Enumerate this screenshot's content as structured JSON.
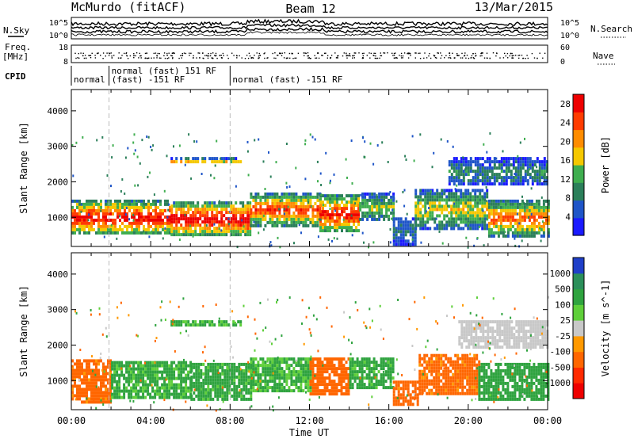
{
  "header": {
    "station": "McMurdo (fitACF)",
    "beam": "Beam 12",
    "date": "13/Mar/2015"
  },
  "noise_panel": {
    "left_label": "N.Sky",
    "right_label": "N.Search",
    "left_ticks": [
      "10^5",
      "10^0"
    ],
    "right_ticks": [
      "10^5",
      "10^0"
    ]
  },
  "freq_panel": {
    "left_label_1": "Freq.",
    "left_label_2": "[MHz]",
    "right_label": "Nave",
    "left_ticks": [
      "18",
      "8"
    ],
    "right_ticks": [
      "60",
      "0"
    ]
  },
  "cpid_panel": {
    "label": "CPID",
    "segments": [
      {
        "start": 0.0,
        "end": 1.9,
        "lines": [
          "normal"
        ]
      },
      {
        "start": 1.9,
        "end": 8.0,
        "lines": [
          "normal (fast) 151 RF",
          "(fast) -151 RF"
        ]
      },
      {
        "start": 8.0,
        "end": 24.0,
        "lines": [
          "normal (fast) -151 RF"
        ]
      }
    ]
  },
  "x_axis": {
    "label": "Time UT",
    "ticks": [
      "00:00",
      "04:00",
      "08:00",
      "12:00",
      "16:00",
      "20:00",
      "00:00"
    ],
    "range_hours": [
      0,
      24
    ]
  },
  "chart_data": [
    {
      "type": "heatmap",
      "parameter": "power",
      "ylabel": "Slant Range [km]",
      "yticks": [
        1000,
        2000,
        3000,
        4000
      ],
      "ylim": [
        180,
        4600
      ],
      "xlim_hours": [
        0,
        24
      ],
      "colorbar_label": "Power [dB]",
      "colorbar_ticks": [
        4,
        8,
        12,
        16,
        20,
        24,
        28
      ],
      "colorbar_range": [
        0,
        30
      ],
      "colors": [
        "#1a1aff",
        "#1f55c8",
        "#2b7f5a",
        "#3fae4f",
        "#f5c800",
        "#ff8c00",
        "#ff3c00",
        "#ee0000"
      ],
      "bands": [
        {
          "t0": 0.0,
          "t1": 5.0,
          "r0": 550,
          "r1": 1500,
          "value": 27
        },
        {
          "t0": 5.0,
          "t1": 9.0,
          "r0": 520,
          "r1": 1450,
          "value": 28
        },
        {
          "t0": 9.0,
          "t1": 12.5,
          "r0": 800,
          "r1": 1700,
          "value": 24
        },
        {
          "t0": 12.5,
          "t1": 14.5,
          "r0": 600,
          "r1": 1650,
          "value": 26
        },
        {
          "t0": 14.5,
          "t1": 16.2,
          "r0": 900,
          "r1": 1700,
          "value": 14
        },
        {
          "t0": 16.2,
          "t1": 17.3,
          "r0": 250,
          "r1": 1000,
          "value": 8
        },
        {
          "t0": 17.3,
          "t1": 21.0,
          "r0": 700,
          "r1": 1800,
          "value": 16
        },
        {
          "t0": 21.0,
          "t1": 24.0,
          "r0": 500,
          "r1": 1500,
          "value": 22
        },
        {
          "t0": 5.0,
          "t1": 8.5,
          "r0": 2550,
          "r1": 2700,
          "value": 18
        },
        {
          "t0": 19.0,
          "t1": 24.0,
          "r0": 1900,
          "r1": 2700,
          "value": 9
        }
      ]
    },
    {
      "type": "heatmap",
      "parameter": "velocity",
      "ylabel": "Slant Range [km]",
      "yticks": [
        1000,
        2000,
        3000,
        4000
      ],
      "ylim": [
        180,
        4600
      ],
      "xlim_hours": [
        0,
        24
      ],
      "colorbar_label": "Velocity [m s^-1]",
      "colorbar_ticks": [
        1000,
        500,
        100,
        25,
        -25,
        -100,
        -500,
        -1000
      ],
      "colors": [
        "#1f3fc8",
        "#2b8f5a",
        "#2fa33f",
        "#5fcf3a",
        "#c8c8c8",
        "#ff9900",
        "#ff6600",
        "#ff2a00",
        "#ee0000"
      ],
      "bands": [
        {
          "t0": 0.0,
          "t1": 2.0,
          "r0": 400,
          "r1": 1600,
          "value": -200
        },
        {
          "t0": 2.0,
          "t1": 6.0,
          "r0": 500,
          "r1": 1550,
          "value": 150
        },
        {
          "t0": 6.0,
          "t1": 9.0,
          "r0": 450,
          "r1": 1500,
          "value": 200
        },
        {
          "t0": 9.0,
          "t1": 12.0,
          "r0": 700,
          "r1": 1650,
          "value": 120
        },
        {
          "t0": 12.0,
          "t1": 14.0,
          "r0": 650,
          "r1": 1650,
          "value": -250
        },
        {
          "t0": 14.0,
          "t1": 16.2,
          "r0": 800,
          "r1": 1650,
          "value": 200
        },
        {
          "t0": 16.2,
          "t1": 17.5,
          "r0": 300,
          "r1": 1000,
          "value": -200
        },
        {
          "t0": 17.5,
          "t1": 20.5,
          "r0": 650,
          "r1": 1750,
          "value": -200
        },
        {
          "t0": 20.5,
          "t1": 24.0,
          "r0": 500,
          "r1": 1500,
          "value": 300
        },
        {
          "t0": 19.5,
          "t1": 24.0,
          "r0": 1900,
          "r1": 2700,
          "value": 0
        },
        {
          "t0": 5.0,
          "t1": 8.5,
          "r0": 2550,
          "r1": 2700,
          "value": 150
        }
      ]
    }
  ]
}
